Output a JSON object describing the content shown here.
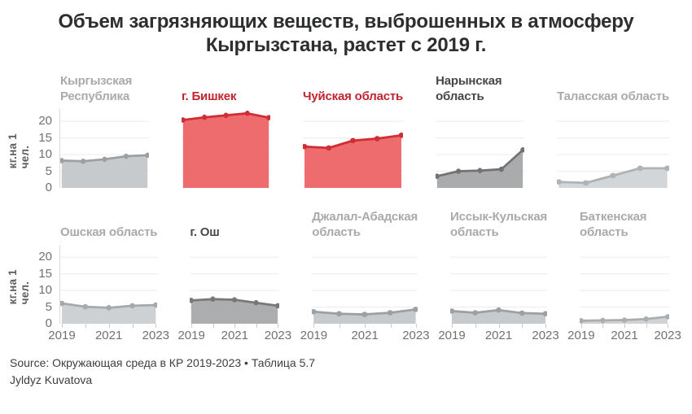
{
  "source": {
    "line1": "Source: Окружающая среда в КР 2019-2023 • Таблица 5.7",
    "line2": "Jyldyz Kuvatova"
  },
  "colors": {
    "grid": "#ececec",
    "axis_text": "#6f7173",
    "axis_label": "#5b5d5f",
    "title_text": "#2d2e30",
    "red_line": "#d02d35",
    "red_fill": "#ee6b6e",
    "red_title": "#c1242e",
    "gray_title": "#a8aaac",
    "dark_title": "#454749"
  },
  "chart_data": {
    "type": "area",
    "title": "Объем загрязняющих веществ, выброшенных в атмосферу\nКыргызстана, растет с 2019 г.",
    "unit_ylabel": "кг.на 1 чел.",
    "layout": "small multiples, 2 rows x 5 columns, shared y scale",
    "grid": true,
    "x": [
      2019,
      2020,
      2021,
      2022,
      2023
    ],
    "x_tick_labels_shown": [
      "2019",
      "2021",
      "2023"
    ],
    "y_ticks": [
      0,
      5,
      10,
      15,
      20
    ],
    "ylim": [
      0,
      23.7
    ],
    "panels": [
      {
        "name": "Кыргызская\nРеспублика",
        "row": 1,
        "values": [
          8.2,
          8.0,
          8.6,
          9.5,
          9.8
        ],
        "line": "#9da0a2",
        "fill": "#c7cacc",
        "title_color": "#a8aaac"
      },
      {
        "name": "г. Бишкек",
        "row": 1,
        "values": [
          20.4,
          21.2,
          21.8,
          22.4,
          21.1
        ],
        "line": "#d02d35",
        "fill": "#ee6b6e",
        "title_color": "#c1242e"
      },
      {
        "name": "Чуйская область",
        "row": 1,
        "values": [
          12.4,
          12.0,
          14.2,
          14.8,
          15.8
        ],
        "line": "#d02d35",
        "fill": "#ee6b6e",
        "title_color": "#c1242e"
      },
      {
        "name": "Нарынская\nобласть",
        "row": 1,
        "values": [
          3.5,
          5.0,
          5.2,
          5.6,
          11.4
        ],
        "line": "#707274",
        "fill": "#a9abad",
        "title_color": "#454749"
      },
      {
        "name": "Таласская область",
        "row": 1,
        "values": [
          1.8,
          1.5,
          3.7,
          5.9,
          5.9
        ],
        "line": "#b0b3b5",
        "fill": "#d3d6d8",
        "title_color": "#a8aaac"
      },
      {
        "name": "Ошская область",
        "row": 2,
        "values": [
          6.1,
          5.1,
          4.8,
          5.4,
          5.6
        ],
        "line": "#a6a9ab",
        "fill": "#ced1d3",
        "title_color": "#a8aaac"
      },
      {
        "name": "г. Ош",
        "row": 2,
        "values": [
          7.0,
          7.4,
          7.2,
          6.3,
          5.4
        ],
        "line": "#76787a",
        "fill": "#abadaf",
        "title_color": "#454749"
      },
      {
        "name": "Джалал-Абадская\nобласть",
        "row": 2,
        "values": [
          3.6,
          3.0,
          2.8,
          3.3,
          4.3
        ],
        "line": "#9da0a2",
        "fill": "#c7cacc",
        "title_color": "#a8aaac"
      },
      {
        "name": "Иссык-Кульская\nобласть",
        "row": 2,
        "values": [
          3.8,
          3.3,
          4.1,
          3.2,
          3.0
        ],
        "line": "#9da0a2",
        "fill": "#c7cacc",
        "title_color": "#a8aaac"
      },
      {
        "name": "Баткенская\nобласть",
        "row": 2,
        "values": [
          0.9,
          1.0,
          1.1,
          1.4,
          2.1
        ],
        "line": "#aaadaf",
        "fill": "#d0d3d5",
        "title_color": "#a8aaac"
      }
    ]
  }
}
